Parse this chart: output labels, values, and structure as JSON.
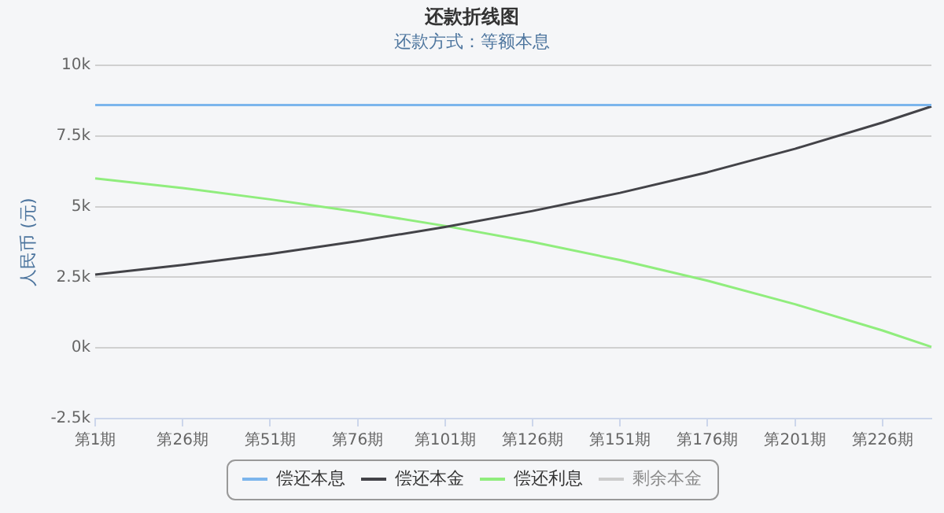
{
  "chart_data": {
    "type": "line",
    "title": "还款折线图",
    "subtitle": "还款方式：等额本息",
    "ylabel": "人民币 (元)",
    "categories": [
      "第1期",
      null,
      null,
      null,
      null,
      null,
      null,
      null,
      null,
      null,
      null,
      null,
      null,
      null,
      null,
      null,
      null,
      null,
      null,
      null,
      null,
      null,
      null,
      null,
      null,
      "第26期",
      null,
      null,
      null,
      null,
      null,
      null,
      null,
      null,
      null,
      null,
      null,
      null,
      null,
      null,
      null,
      null,
      null,
      null,
      null,
      null,
      null,
      null,
      null,
      null,
      "第51期",
      null,
      null,
      null,
      null,
      null,
      null,
      null,
      null,
      null,
      null,
      null,
      null,
      null,
      null,
      null,
      null,
      null,
      null,
      null,
      null,
      null,
      null,
      null,
      null,
      "第76期",
      null,
      null,
      null,
      null,
      null,
      null,
      null,
      null,
      null,
      null,
      null,
      null,
      null,
      null,
      null,
      null,
      null,
      null,
      null,
      null,
      null,
      null,
      null,
      null,
      "第101期",
      null,
      null,
      null,
      null,
      null,
      null,
      null,
      null,
      null,
      null,
      null,
      null,
      null,
      null,
      null,
      null,
      null,
      null,
      null,
      null,
      null,
      null,
      null,
      null,
      "第126期",
      null,
      null,
      null,
      null,
      null,
      null,
      null,
      null,
      null,
      null,
      null,
      null,
      null,
      null,
      null,
      null,
      null,
      null,
      null,
      null,
      null,
      null,
      null,
      null,
      "第151期",
      null,
      null,
      null,
      null,
      null,
      null,
      null,
      null,
      null,
      null,
      null,
      null,
      null,
      null,
      null,
      null,
      null,
      null,
      null,
      null,
      null,
      null,
      null,
      null,
      "第176期",
      null,
      null,
      null,
      null,
      null,
      null,
      null,
      null,
      null,
      null,
      null,
      null,
      null,
      null,
      null,
      null,
      null,
      null,
      null,
      null,
      null,
      null,
      null,
      null,
      "第201期",
      null,
      null,
      null,
      null,
      null,
      null,
      null,
      null,
      null,
      null,
      null,
      null,
      null,
      null,
      null,
      null,
      null,
      null,
      null,
      null,
      null,
      null,
      null,
      null,
      "第226期",
      null,
      null,
      null,
      null,
      null,
      null,
      null,
      null,
      null,
      null,
      null,
      null,
      null,
      null
    ],
    "ylim": [
      -2500,
      10000
    ],
    "yticks": [
      {
        "value": -2500,
        "label": "-2.5k"
      },
      {
        "value": 0,
        "label": "0k"
      },
      {
        "value": 2500,
        "label": "2.5k"
      },
      {
        "value": 5000,
        "label": "5k"
      },
      {
        "value": 7500,
        "label": "7.5k"
      },
      {
        "value": 10000,
        "label": "10k"
      }
    ],
    "series": [
      {
        "name": "偿还本息",
        "color": "#7cb5ec",
        "values": [
          8600,
          null,
          null,
          null,
          null,
          null,
          null,
          null,
          null,
          null,
          null,
          null,
          null,
          null,
          null,
          null,
          null,
          null,
          null,
          null,
          null,
          null,
          null,
          null,
          null,
          8600,
          null,
          null,
          null,
          null,
          null,
          null,
          null,
          null,
          null,
          null,
          null,
          null,
          null,
          null,
          null,
          null,
          null,
          null,
          null,
          null,
          null,
          null,
          null,
          null,
          8600,
          null,
          null,
          null,
          null,
          null,
          null,
          null,
          null,
          null,
          null,
          null,
          null,
          null,
          null,
          null,
          null,
          null,
          null,
          null,
          null,
          null,
          null,
          null,
          null,
          8600,
          null,
          null,
          null,
          null,
          null,
          null,
          null,
          null,
          null,
          null,
          null,
          null,
          null,
          null,
          null,
          null,
          null,
          null,
          null,
          null,
          null,
          null,
          null,
          null,
          8600,
          null,
          null,
          null,
          null,
          null,
          null,
          null,
          null,
          null,
          null,
          null,
          null,
          null,
          null,
          null,
          null,
          null,
          null,
          null,
          null,
          null,
          null,
          null,
          null,
          8600,
          null,
          null,
          null,
          null,
          null,
          null,
          null,
          null,
          null,
          null,
          null,
          null,
          null,
          null,
          null,
          null,
          null,
          null,
          null,
          null,
          null,
          null,
          null,
          null,
          8600,
          null,
          null,
          null,
          null,
          null,
          null,
          null,
          null,
          null,
          null,
          null,
          null,
          null,
          null,
          null,
          null,
          null,
          null,
          null,
          null,
          null,
          null,
          null,
          null,
          8600,
          null,
          null,
          null,
          null,
          null,
          null,
          null,
          null,
          null,
          null,
          null,
          null,
          null,
          null,
          null,
          null,
          null,
          null,
          null,
          null,
          null,
          null,
          null,
          null,
          8600,
          null,
          null,
          null,
          null,
          null,
          null,
          null,
          null,
          null,
          null,
          null,
          null,
          null,
          null,
          null,
          null,
          null,
          null,
          null,
          null,
          null,
          null,
          null,
          null,
          8600,
          null,
          null,
          null,
          null,
          null,
          null,
          null,
          null,
          null,
          null,
          null,
          null,
          null,
          8600
        ]
      },
      {
        "name": "偿还本金",
        "color": "#434348",
        "values": [
          2600,
          null,
          null,
          null,
          null,
          null,
          null,
          null,
          null,
          null,
          null,
          null,
          null,
          null,
          null,
          null,
          null,
          null,
          null,
          null,
          null,
          null,
          null,
          null,
          null,
          2940,
          null,
          null,
          null,
          null,
          null,
          null,
          null,
          null,
          null,
          null,
          null,
          null,
          null,
          null,
          null,
          null,
          null,
          null,
          null,
          null,
          null,
          null,
          null,
          null,
          3330,
          null,
          null,
          null,
          null,
          null,
          null,
          null,
          null,
          null,
          null,
          null,
          null,
          null,
          null,
          null,
          null,
          null,
          null,
          null,
          null,
          null,
          null,
          null,
          null,
          3780,
          null,
          null,
          null,
          null,
          null,
          null,
          null,
          null,
          null,
          null,
          null,
          null,
          null,
          null,
          null,
          null,
          null,
          null,
          null,
          null,
          null,
          null,
          null,
          null,
          4280,
          null,
          null,
          null,
          null,
          null,
          null,
          null,
          null,
          null,
          null,
          null,
          null,
          null,
          null,
          null,
          null,
          null,
          null,
          null,
          null,
          null,
          null,
          null,
          null,
          4850,
          null,
          null,
          null,
          null,
          null,
          null,
          null,
          null,
          null,
          null,
          null,
          null,
          null,
          null,
          null,
          null,
          null,
          null,
          null,
          null,
          null,
          null,
          null,
          null,
          5490,
          null,
          null,
          null,
          null,
          null,
          null,
          null,
          null,
          null,
          null,
          null,
          null,
          null,
          null,
          null,
          null,
          null,
          null,
          null,
          null,
          null,
          null,
          null,
          null,
          6220,
          null,
          null,
          null,
          null,
          null,
          null,
          null,
          null,
          null,
          null,
          null,
          null,
          null,
          null,
          null,
          null,
          null,
          null,
          null,
          null,
          null,
          null,
          null,
          null,
          7050,
          null,
          null,
          null,
          null,
          null,
          null,
          null,
          null,
          null,
          null,
          null,
          null,
          null,
          null,
          null,
          null,
          null,
          null,
          null,
          null,
          null,
          null,
          null,
          null,
          7980,
          null,
          null,
          null,
          null,
          null,
          null,
          null,
          null,
          null,
          null,
          null,
          null,
          null,
          8550
        ]
      },
      {
        "name": "偿还利息",
        "color": "#90ed7d",
        "values": [
          6000,
          null,
          null,
          null,
          null,
          null,
          null,
          null,
          null,
          null,
          null,
          null,
          null,
          null,
          null,
          null,
          null,
          null,
          null,
          null,
          null,
          null,
          null,
          null,
          null,
          5660,
          null,
          null,
          null,
          null,
          null,
          null,
          null,
          null,
          null,
          null,
          null,
          null,
          null,
          null,
          null,
          null,
          null,
          null,
          null,
          null,
          null,
          null,
          null,
          null,
          5260,
          null,
          null,
          null,
          null,
          null,
          null,
          null,
          null,
          null,
          null,
          null,
          null,
          null,
          null,
          null,
          null,
          null,
          null,
          null,
          null,
          null,
          null,
          null,
          null,
          4820,
          null,
          null,
          null,
          null,
          null,
          null,
          null,
          null,
          null,
          null,
          null,
          null,
          null,
          null,
          null,
          null,
          null,
          null,
          null,
          null,
          null,
          null,
          null,
          null,
          4320,
          null,
          null,
          null,
          null,
          null,
          null,
          null,
          null,
          null,
          null,
          null,
          null,
          null,
          null,
          null,
          null,
          null,
          null,
          null,
          null,
          null,
          null,
          null,
          null,
          3750,
          null,
          null,
          null,
          null,
          null,
          null,
          null,
          null,
          null,
          null,
          null,
          null,
          null,
          null,
          null,
          null,
          null,
          null,
          null,
          null,
          null,
          null,
          null,
          null,
          3110,
          null,
          null,
          null,
          null,
          null,
          null,
          null,
          null,
          null,
          null,
          null,
          null,
          null,
          null,
          null,
          null,
          null,
          null,
          null,
          null,
          null,
          null,
          null,
          null,
          2380,
          null,
          null,
          null,
          null,
          null,
          null,
          null,
          null,
          null,
          null,
          null,
          null,
          null,
          null,
          null,
          null,
          null,
          null,
          null,
          null,
          null,
          null,
          null,
          null,
          1550,
          null,
          null,
          null,
          null,
          null,
          null,
          null,
          null,
          null,
          null,
          null,
          null,
          null,
          null,
          null,
          null,
          null,
          null,
          null,
          null,
          null,
          null,
          null,
          null,
          620,
          null,
          null,
          null,
          null,
          null,
          null,
          null,
          null,
          null,
          null,
          null,
          null,
          null,
          40
        ]
      },
      {
        "name": "剩余本金",
        "color": "#cccccc",
        "values": [
          null,
          null,
          null,
          null,
          null,
          null,
          null,
          null,
          null,
          null,
          null,
          null,
          null,
          null,
          null,
          null,
          null,
          null,
          null,
          null,
          null,
          null,
          null,
          null,
          null,
          null,
          null,
          null,
          null,
          null,
          null,
          null,
          null,
          null,
          null,
          null,
          null,
          null,
          null,
          null,
          null,
          null,
          null,
          null,
          null,
          null,
          null,
          null,
          null,
          null,
          null,
          null,
          null,
          null,
          null,
          null,
          null,
          null,
          null,
          null,
          null,
          null,
          null,
          null,
          null,
          null,
          null,
          null,
          null,
          null,
          null,
          null,
          null,
          null,
          null,
          null,
          null,
          null,
          null,
          null,
          null,
          null,
          null,
          null,
          null,
          null,
          null,
          null,
          null,
          null,
          null,
          null,
          null,
          null,
          null,
          null,
          null,
          null,
          null,
          null,
          null,
          null,
          null,
          null,
          null,
          null,
          null,
          null,
          null,
          null,
          null,
          null,
          null,
          null,
          null,
          null,
          null,
          null,
          null,
          null,
          null,
          null,
          null,
          null,
          null,
          null,
          null,
          null,
          null,
          null,
          null,
          null,
          null,
          null,
          null,
          null,
          null,
          null,
          null,
          null,
          null,
          null,
          null,
          null,
          null,
          null,
          null,
          null,
          null,
          null,
          null,
          null,
          null,
          null,
          null,
          null,
          null,
          null,
          null,
          null,
          null,
          null,
          null,
          null,
          null,
          null,
          null,
          null,
          null,
          null,
          null,
          null,
          null,
          null,
          null,
          null,
          null,
          null,
          null,
          null,
          null,
          null,
          null,
          null,
          null,
          null,
          null,
          null,
          null,
          null,
          null,
          null,
          null,
          null,
          null,
          null,
          null,
          null,
          null,
          null,
          null,
          null,
          null,
          null,
          null,
          null,
          null,
          null,
          null,
          null,
          null,
          null,
          null,
          null,
          null,
          null,
          null,
          null,
          null,
          null,
          null,
          null,
          null,
          null,
          null,
          null,
          null,
          null,
          null,
          null,
          null,
          null,
          null,
          null,
          null,
          null,
          null,
          null,
          null,
          null
        ]
      }
    ],
    "grid": "y",
    "legend": "bottom",
    "marker": "none",
    "line_style": "solid"
  }
}
